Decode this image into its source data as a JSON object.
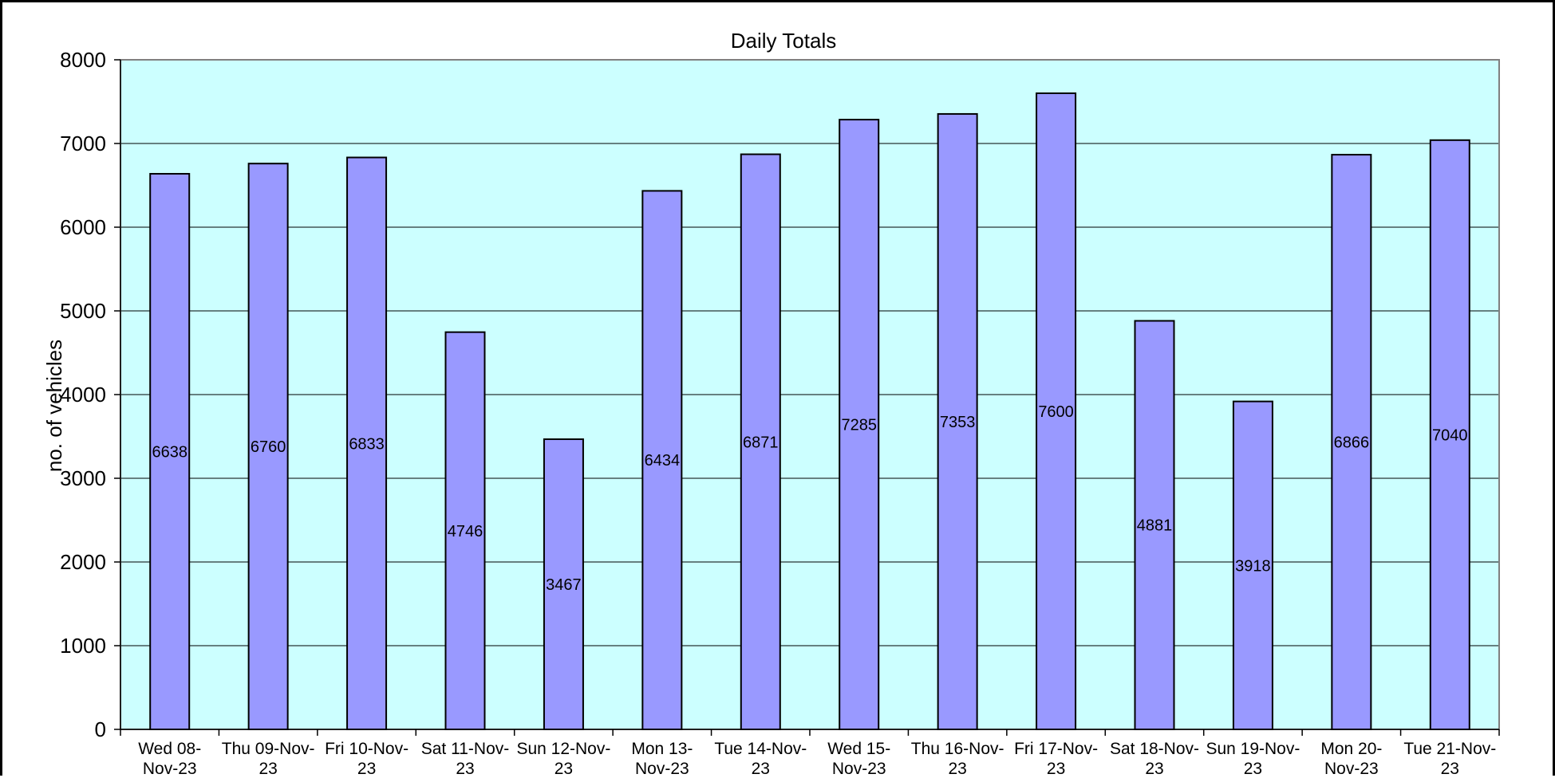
{
  "chart_data": {
    "type": "bar",
    "title": "Daily Totals",
    "xlabel": "",
    "ylabel": "no. of vehicles",
    "ylim": [
      0,
      8000
    ],
    "yticks": [
      0,
      1000,
      2000,
      3000,
      4000,
      5000,
      6000,
      7000,
      8000
    ],
    "grid": true,
    "legend": "none",
    "categories": [
      [
        "Wed 08-",
        "Nov-23"
      ],
      [
        "Thu 09-Nov-",
        "23"
      ],
      [
        "Fri 10-Nov-",
        "23"
      ],
      [
        "Sat 11-Nov-",
        "23"
      ],
      [
        "Sun 12-Nov-",
        "23"
      ],
      [
        "Mon 13-",
        "Nov-23"
      ],
      [
        "Tue 14-Nov-",
        "23"
      ],
      [
        "Wed 15-",
        "Nov-23"
      ],
      [
        "Thu 16-Nov-",
        "23"
      ],
      [
        "Fri 17-Nov-",
        "23"
      ],
      [
        "Sat 18-Nov-",
        "23"
      ],
      [
        "Sun 19-Nov-",
        "23"
      ],
      [
        "Mon 20-",
        "Nov-23"
      ],
      [
        "Tue 21-Nov-",
        "23"
      ]
    ],
    "values": [
      6638,
      6760,
      6833,
      4746,
      3467,
      6434,
      6871,
      7285,
      7353,
      7600,
      4881,
      3918,
      6866,
      7040
    ],
    "colors": {
      "plot_background": "#ccffff",
      "bar_fill": "#9999ff",
      "bar_stroke": "#000000",
      "gridline": "#000000",
      "plot_border": "#808080"
    }
  }
}
